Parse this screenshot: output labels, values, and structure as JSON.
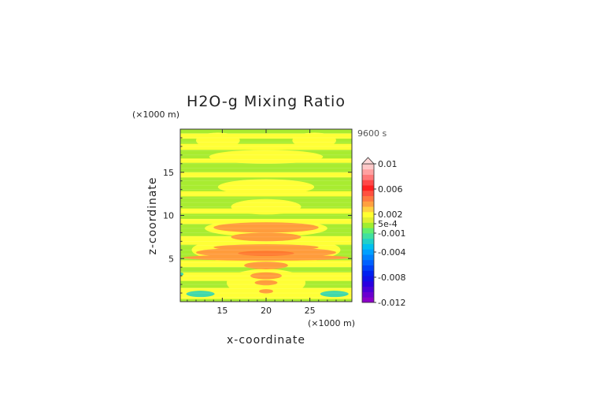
{
  "chart_data": {
    "type": "heatmap",
    "title": "H2O-g Mixing Ratio",
    "xlabel": "x-coordinate",
    "ylabel": "z-coordinate",
    "x_unit": "(×1000 m)",
    "y_unit": "(×1000 m)",
    "time_label": "9600 s",
    "xlim": [
      10.2,
      29.8
    ],
    "ylim": [
      0,
      20
    ],
    "x_ticks": [
      "15",
      "20",
      "25"
    ],
    "y_ticks": [
      "5",
      "10",
      "15"
    ],
    "x_tick_values": [
      15,
      20,
      25
    ],
    "y_tick_values": [
      5,
      10,
      15
    ],
    "colorbar_labels": [
      "0.01",
      "0.006",
      "0.002",
      "5e-4",
      "-0.001",
      "-0.004",
      "-0.008",
      "-0.012"
    ],
    "colorbar_label_values": [
      0.01,
      0.006,
      0.002,
      0.0005,
      -0.001,
      -0.004,
      -0.008,
      -0.012
    ],
    "colorbar_range": [
      -0.012,
      0.01
    ],
    "colorbar_colors": [
      "#8a00c8",
      "#6a00d0",
      "#4a00d8",
      "#2a00e0",
      "#1010e8",
      "#0020f0",
      "#0040f8",
      "#0060ff",
      "#0080ff",
      "#00a0ff",
      "#00c0f0",
      "#20d0c8",
      "#40e0a0",
      "#60ee70",
      "#a0ee30",
      "#e0f030",
      "#ffff30",
      "#ffd040",
      "#ffa040",
      "#ff7840",
      "#ff5040",
      "#ff2020",
      "#ff4848",
      "#ff7878",
      "#ffa0a0",
      "#ffc8c8"
    ],
    "field_colors": {
      "green": "#a8ec30",
      "yellow": "#ffff36",
      "orange": "#ff9c3c",
      "dark_orange": "#ff7a30",
      "cyan": "#40d8a8"
    }
  }
}
